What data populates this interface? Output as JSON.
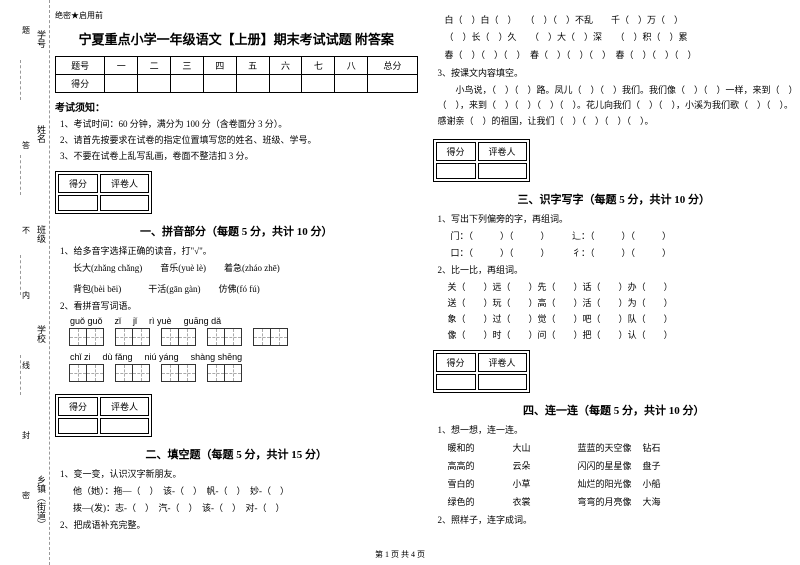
{
  "sidebar": {
    "labels": [
      "学号",
      "姓名",
      "班级",
      "学校",
      "乡镇（街道）"
    ],
    "marks": [
      "题",
      "答",
      "不",
      "内",
      "线",
      "封",
      "密"
    ]
  },
  "secret": "绝密★启用前",
  "title": "宁夏重点小学一年级语文【上册】期末考试试题 附答案",
  "scoreHeaders": [
    "题号",
    "一",
    "二",
    "三",
    "四",
    "五",
    "六",
    "七",
    "八",
    "总分"
  ],
  "scoreRow2": "得分",
  "notice": {
    "h": "考试须知：",
    "items": [
      "1、考试时间：60 分钟，满分为 100 分（含卷面分 3 分）。",
      "2、请首先按要求在试卷的指定位置填写您的姓名、班级、学号。",
      "3、不要在试卷上乱写乱画，卷面不整洁扣 3 分。"
    ]
  },
  "box": {
    "c1": "得分",
    "c2": "评卷人"
  },
  "sec1": {
    "title": "一、拼音部分（每题 5 分，共计 10 分）",
    "q1": "1、给多音字选择正确的读音，打\"√\"。",
    "words": [
      "长大(zhǎng  chǎng)",
      "音乐(yuè  lè)",
      "着急(zháo  zhē)",
      "背包(bèi  bēi)",
      "干活(gān  gàn)",
      "仿佛(fó  fú)"
    ],
    "q2": "2、看拼音写词语。",
    "py1": [
      "guǒ  guǒ",
      "zǐ",
      "jǐ",
      "rì yuè",
      "guāng  dǎ"
    ],
    "py2": [
      "chǐ  zi",
      "dù  fǎng",
      "niú  yáng",
      "shàng shēng"
    ]
  },
  "sec2": {
    "title": "二、填空题（每题 5 分，共计 15 分）",
    "q1": "1、变一变，认识汉字新朋友。",
    "lines": [
      "他（她）：拖—（　）　该-（　）　帆-（　）　妙-（　）",
      "拨—(发)：志-（　）　汽-（　）　该-（　）　对-（　）"
    ],
    "q2": "2、把成语补充完整。"
  },
  "right": {
    "fill": [
      "白（　）白（　）　　（　）（　）不乱　　千（　）万（　）",
      "（　）长（　）久　　（　）大（　）深　　（　）积（　）累",
      "春（　）（　）（　）　春（　）（　）（　）　春（　）（　）（　）"
    ],
    "q3": "3、按课文内容填空。",
    "q3text": "　　小鸟说，（　）（　）路。凤儿（　）（　）我们。我们像（　）（　）一样，来到（　）（　），来到（　）（　）（　）（　）。花儿向我们（　）（　），小溪为我们歌（　）（　）。感谢亲（　）的祖国，让我们（　）（　）（　）（　）。"
  },
  "sec3": {
    "title": "三、识字写字（每题 5 分，共计 10 分）",
    "q1": "1、写出下列偏旁的字，再组词。",
    "rads": [
      "门：",
      "辶：",
      "口：",
      "彳："
    ],
    "q2": "2、比一比，再组词。",
    "pairs": [
      [
        "关（　　）",
        "远（　　）",
        "先（　　）",
        "话（　　）",
        "办（　　）"
      ],
      [
        "送（　　）",
        "玩（　　）",
        "高（　　）",
        "活（　　）",
        "为（　　）"
      ],
      [
        "象（　　）",
        "过（　　）",
        "觉（　　）",
        "吧（　　）",
        "队（　　）"
      ],
      [
        "像（　　）",
        "时（　　）",
        "问（　　）",
        "把（　　）",
        "认（　　）"
      ]
    ]
  },
  "sec4": {
    "title": "四、连一连（每题 5 分，共计 10 分）",
    "q1": "1、想一想，连一连。",
    "rows": [
      [
        "暖和的",
        "大山",
        "蓝蓝的天空像",
        "钻石"
      ],
      [
        "高高的",
        "云朵",
        "闪闪的星星像",
        "盘子"
      ],
      [
        "雪白的",
        "小草",
        "灿烂的阳光像",
        "小船"
      ],
      [
        "绿色的",
        "衣裳",
        "弯弯的月亮像",
        "大海"
      ]
    ],
    "q2": "2、照样子，连字成词。"
  },
  "footer": "第 1 页 共 4 页"
}
